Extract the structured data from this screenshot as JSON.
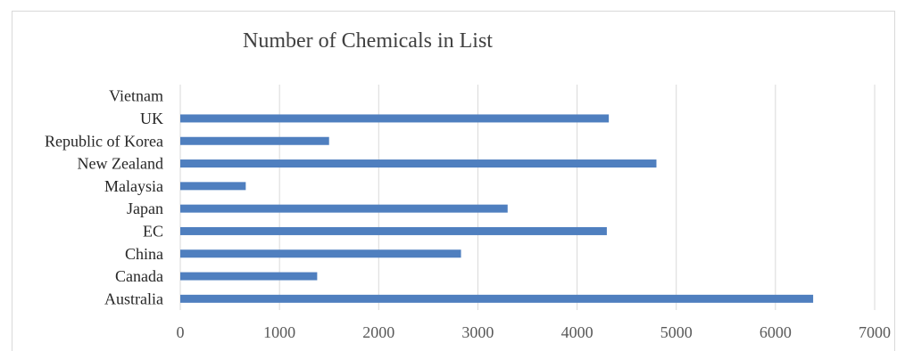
{
  "chart_data": {
    "type": "bar",
    "orientation": "horizontal",
    "title": "Number of Chemicals in List",
    "xlabel": "",
    "ylabel": "",
    "xlim": [
      0,
      7000
    ],
    "xticks": [
      0,
      1000,
      2000,
      3000,
      4000,
      5000,
      6000,
      7000
    ],
    "grid": true,
    "legend": "none",
    "color": "#4f7fbf",
    "categories": [
      "Australia",
      "Canada",
      "China",
      "EC",
      "Japan",
      "Malaysia",
      "New Zealand",
      "Republic of Korea",
      "UK",
      "Vietnam"
    ],
    "values": [
      6380,
      1380,
      2830,
      4300,
      3300,
      660,
      4800,
      1500,
      4320,
      0
    ]
  }
}
